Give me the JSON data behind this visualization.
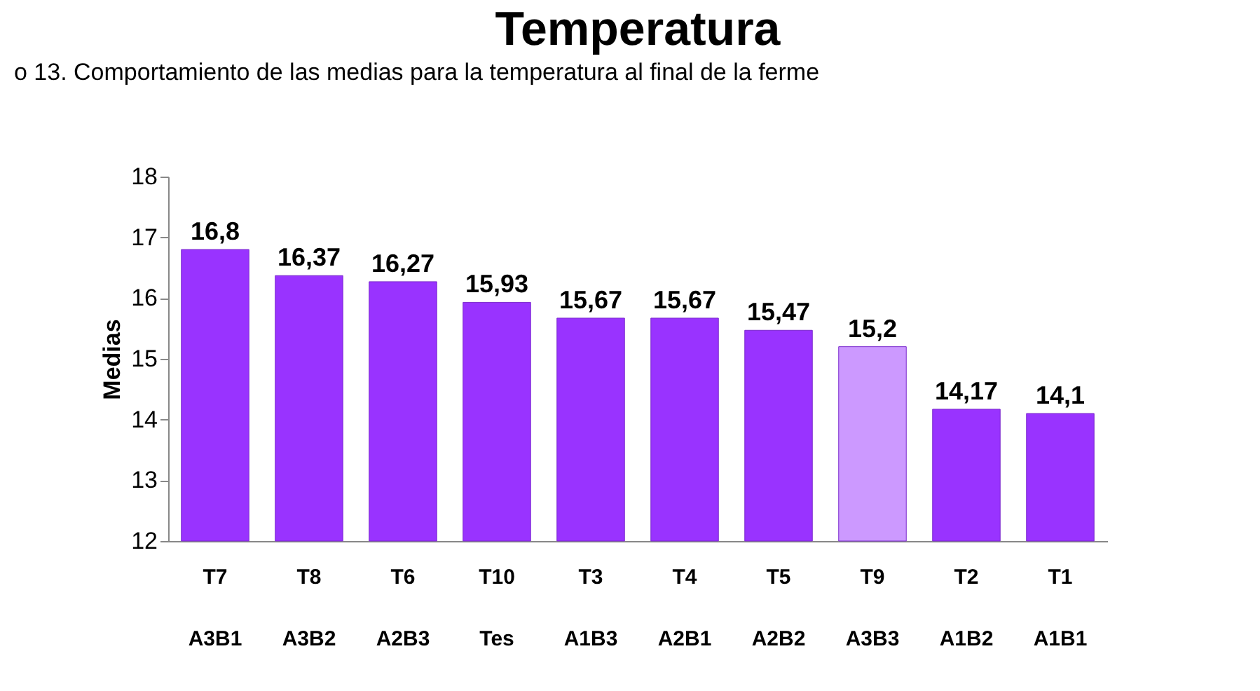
{
  "chart_data": {
    "type": "bar",
    "title": "Temperatura",
    "ylabel": "Medias",
    "annotations": [
      "o 13. Comportamiento de las medias para la temperatura  al final de la ferme"
    ],
    "categories": [
      "T7\nA3B1",
      "T8\nA3B2",
      "T6\nA2B3",
      "T10\nTes",
      "T3\nA1B3",
      "T4\nA2B1",
      "T5\nA2B2",
      "T9\nA3B3",
      "T2\nA1B2",
      "T1\nA1B1"
    ],
    "values": [
      16.8,
      16.37,
      16.27,
      15.93,
      15.67,
      15.67,
      15.47,
      15.2,
      14.17,
      14.1
    ],
    "value_labels": [
      "16,8",
      "16,37",
      "16,27",
      "15,93",
      "15,67",
      "15,67",
      "15,47",
      "15,2",
      "14,17",
      "14,1"
    ],
    "colors": [
      "#9933ff",
      "#9933ff",
      "#9933ff",
      "#9933ff",
      "#9933ff",
      "#9933ff",
      "#9933ff",
      "#cc99ff",
      "#9933ff",
      "#9933ff"
    ],
    "ylim": [
      12,
      18
    ],
    "yticks": [
      12,
      13,
      14,
      15,
      16,
      17,
      18
    ],
    "grid": false
  }
}
